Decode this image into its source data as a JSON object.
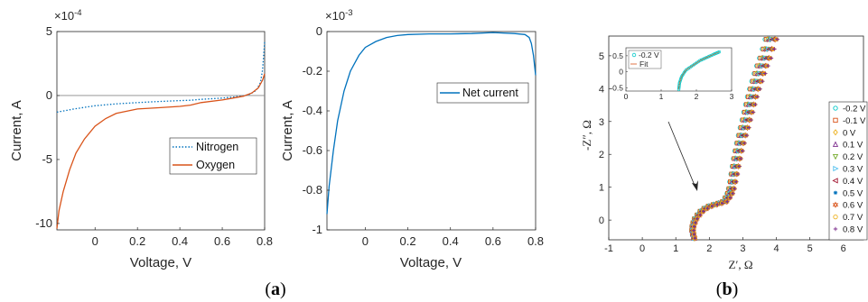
{
  "panel_labels": {
    "a_open": "(",
    "a_letter": "a",
    "a_close": ")",
    "b_open": "(",
    "b_letter": "b",
    "b_close": ")"
  },
  "chart_data": [
    {
      "type": "line",
      "ylabel": "Current, A",
      "xlabel": "Voltage, V",
      "exponent": "×10",
      "exponent_power": "-4",
      "xlim": [
        -0.18,
        0.8
      ],
      "ylim": [
        -10.5,
        5
      ],
      "xticks": [
        0,
        0.2,
        0.4,
        0.6,
        0.8
      ],
      "xtick_labels": [
        "0",
        "0.2",
        "0.4",
        "0.6",
        "0.8"
      ],
      "yticks": [
        -10,
        -5,
        0,
        5
      ],
      "ytick_labels": [
        "-10",
        "-5",
        "0",
        "5"
      ],
      "zero_line": true,
      "legend_position": "lower-right",
      "series": [
        {
          "name": "Nitrogen",
          "color": "#0072BD",
          "style": "dotted",
          "x": [
            -0.18,
            -0.1,
            0,
            0.1,
            0.2,
            0.3,
            0.4,
            0.45,
            0.5,
            0.6,
            0.65,
            0.7,
            0.73,
            0.76,
            0.78,
            0.79,
            0.8
          ],
          "y": [
            -1.3,
            -1.05,
            -0.8,
            -0.65,
            -0.55,
            -0.47,
            -0.4,
            -0.37,
            -0.3,
            -0.2,
            -0.12,
            -0.02,
            0.1,
            0.4,
            1.0,
            2.0,
            4.2
          ]
        },
        {
          "name": "Oxygen",
          "color": "#D95319",
          "style": "solid",
          "x": [
            -0.18,
            -0.17,
            -0.15,
            -0.12,
            -0.09,
            -0.05,
            0,
            0.05,
            0.1,
            0.2,
            0.3,
            0.4,
            0.45,
            0.5,
            0.6,
            0.65,
            0.7,
            0.74,
            0.77,
            0.79,
            0.8
          ],
          "y": [
            -10.4,
            -9.0,
            -7.5,
            -5.8,
            -4.5,
            -3.4,
            -2.4,
            -1.8,
            -1.4,
            -1.05,
            -0.95,
            -0.85,
            -0.75,
            -0.55,
            -0.35,
            -0.2,
            -0.05,
            0.2,
            0.6,
            1.2,
            1.7
          ]
        }
      ]
    },
    {
      "type": "line",
      "ylabel": "Current, A",
      "xlabel": "Voltage, V",
      "exponent": "×10",
      "exponent_power": "-3",
      "xlim": [
        -0.18,
        0.8
      ],
      "ylim": [
        -1,
        0
      ],
      "xticks": [
        0,
        0.2,
        0.4,
        0.6,
        0.8
      ],
      "xtick_labels": [
        "0",
        "0.2",
        "0.4",
        "0.6",
        "0.8"
      ],
      "yticks": [
        -1,
        -0.8,
        -0.6,
        -0.4,
        -0.2,
        0
      ],
      "ytick_labels": [
        "-1",
        "-0.8",
        "-0.6",
        "-0.4",
        "-0.2",
        "0"
      ],
      "legend_position": "upper-right",
      "series": [
        {
          "name": "Net current",
          "color": "#0072BD",
          "style": "solid",
          "x": [
            -0.18,
            -0.17,
            -0.15,
            -0.13,
            -0.1,
            -0.07,
            -0.03,
            0,
            0.05,
            0.1,
            0.15,
            0.2,
            0.3,
            0.4,
            0.5,
            0.6,
            0.7,
            0.75,
            0.77,
            0.78,
            0.79,
            0.8
          ],
          "y": [
            -0.92,
            -0.78,
            -0.6,
            -0.45,
            -0.3,
            -0.2,
            -0.12,
            -0.08,
            -0.05,
            -0.03,
            -0.02,
            -0.015,
            -0.012,
            -0.012,
            -0.01,
            -0.005,
            -0.01,
            -0.015,
            -0.03,
            -0.06,
            -0.12,
            -0.22
          ]
        }
      ]
    },
    {
      "type": "scatter",
      "xlabel_main": "Z",
      "xlabel_sup": "′",
      "xlabel_unit": ", Ω",
      "ylabel_main": "-Z",
      "ylabel_sup": "″",
      "ylabel_unit": ", Ω",
      "xlim": [
        -1,
        6.6
      ],
      "ylim": [
        -0.6,
        5.6
      ],
      "xticks": [
        -1,
        0,
        1,
        2,
        3,
        4,
        5,
        6
      ],
      "xtick_labels": [
        "-1",
        "0",
        "1",
        "2",
        "3",
        "4",
        "5",
        "6"
      ],
      "yticks": [
        0,
        1,
        2,
        3,
        4,
        5
      ],
      "ytick_labels": [
        "0",
        "1",
        "2",
        "3",
        "4",
        "5"
      ],
      "legend_position": "right",
      "series": [
        {
          "name": "-0.2 V",
          "color": "#00C8C8",
          "marker": "circle"
        },
        {
          "name": "-0.1 V",
          "color": "#D95319",
          "marker": "square"
        },
        {
          "name": "0 V",
          "color": "#EDB120",
          "marker": "diamond"
        },
        {
          "name": "0.1 V",
          "color": "#7E2F8E",
          "marker": "triangle-up"
        },
        {
          "name": "0.2 V",
          "color": "#77AC30",
          "marker": "triangle-down"
        },
        {
          "name": "0.3 V",
          "color": "#4DBEEE",
          "marker": "triangle-right"
        },
        {
          "name": "0.4 V",
          "color": "#A2142F",
          "marker": "triangle-left"
        },
        {
          "name": "0.5 V",
          "color": "#0072BD",
          "marker": "asterisk"
        },
        {
          "name": "0.6 V",
          "color": "#D95319",
          "marker": "hexagram"
        },
        {
          "name": "0.7 V",
          "color": "#EDB120",
          "marker": "circle"
        },
        {
          "name": "0.8 V",
          "color": "#7E2F8E",
          "marker": "plus"
        }
      ],
      "path_x": [
        1.55,
        1.5,
        1.52,
        1.6,
        1.75,
        1.95,
        2.2,
        2.45,
        2.6,
        2.68,
        2.75,
        2.82,
        2.9,
        3.0,
        3.1,
        3.2,
        3.3,
        3.42,
        3.55,
        3.7,
        3.85
      ],
      "path_y": [
        -0.55,
        -0.35,
        -0.15,
        0.05,
        0.25,
        0.4,
        0.48,
        0.55,
        0.75,
        1.0,
        1.4,
        1.8,
        2.2,
        2.6,
        3.0,
        3.4,
        3.8,
        4.2,
        4.6,
        5.0,
        5.5
      ],
      "inset": {
        "legend": [
          "-0.2 V",
          "Fit"
        ],
        "xlim": [
          0,
          3
        ],
        "ylim": [
          -0.6,
          0.75
        ],
        "xticks": [
          0,
          1,
          2,
          3
        ],
        "xtick_labels": [
          "0",
          "1",
          "2",
          "3"
        ],
        "yticks": [
          -0.5,
          0,
          0.5
        ],
        "ytick_labels": [
          "-0.5",
          "0",
          "0.5"
        ],
        "x": [
          1.5,
          1.52,
          1.58,
          1.7,
          1.9,
          2.1,
          2.3,
          2.5,
          2.65
        ],
        "y": [
          -0.55,
          -0.35,
          -0.15,
          0.05,
          0.2,
          0.35,
          0.45,
          0.55,
          0.62
        ]
      }
    }
  ]
}
